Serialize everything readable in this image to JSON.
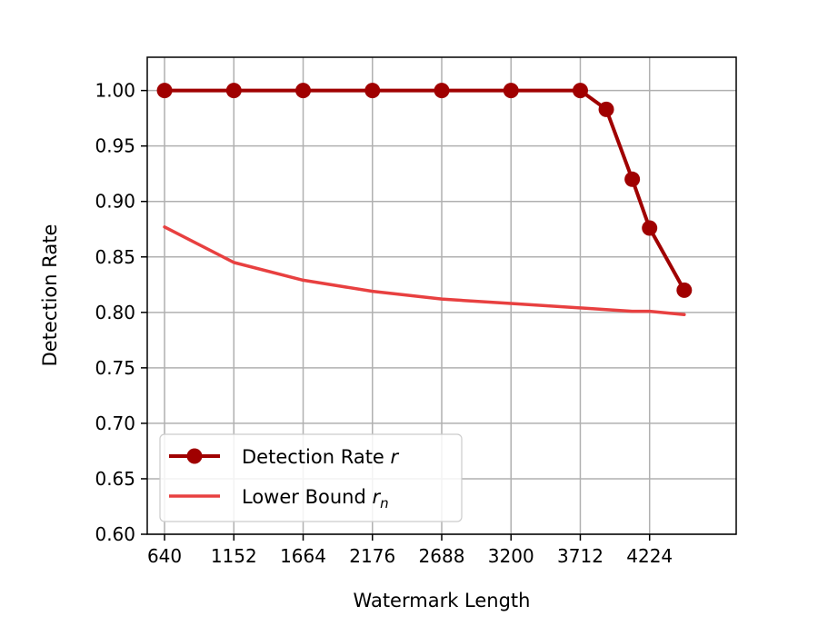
{
  "chart_data": {
    "type": "line",
    "xlabel": "Watermark Length",
    "ylabel": "Detection Rate",
    "xlim": [
      512,
      4864
    ],
    "ylim": [
      0.6,
      1.03
    ],
    "x_ticks": [
      640,
      1152,
      1664,
      2176,
      2688,
      3200,
      3712,
      4224
    ],
    "y_ticks": [
      0.6,
      0.65,
      0.7,
      0.75,
      0.8,
      0.85,
      0.9,
      0.95,
      1.0
    ],
    "grid": true,
    "legend_position": "lower-left",
    "series": [
      {
        "name": "Detection Rate r",
        "legend_main": "Detection Rate ",
        "legend_var": "r",
        "legend_sub": "",
        "color": "#a00000",
        "marker": "circle",
        "x": [
          640,
          1152,
          1664,
          2176,
          2688,
          3200,
          3712,
          3904,
          4096,
          4224,
          4480
        ],
        "y": [
          1.0,
          1.0,
          1.0,
          1.0,
          1.0,
          1.0,
          1.0,
          0.983,
          0.92,
          0.876,
          0.82
        ]
      },
      {
        "name": "Lower Bound r_n",
        "legend_main": "Lower Bound ",
        "legend_var": "r",
        "legend_sub": "n",
        "color": "#e84040",
        "marker": "none",
        "x": [
          640,
          1152,
          1664,
          2176,
          2688,
          3200,
          3712,
          4096,
          4224,
          4480
        ],
        "y": [
          0.877,
          0.845,
          0.829,
          0.819,
          0.812,
          0.808,
          0.804,
          0.801,
          0.801,
          0.798
        ]
      }
    ]
  }
}
